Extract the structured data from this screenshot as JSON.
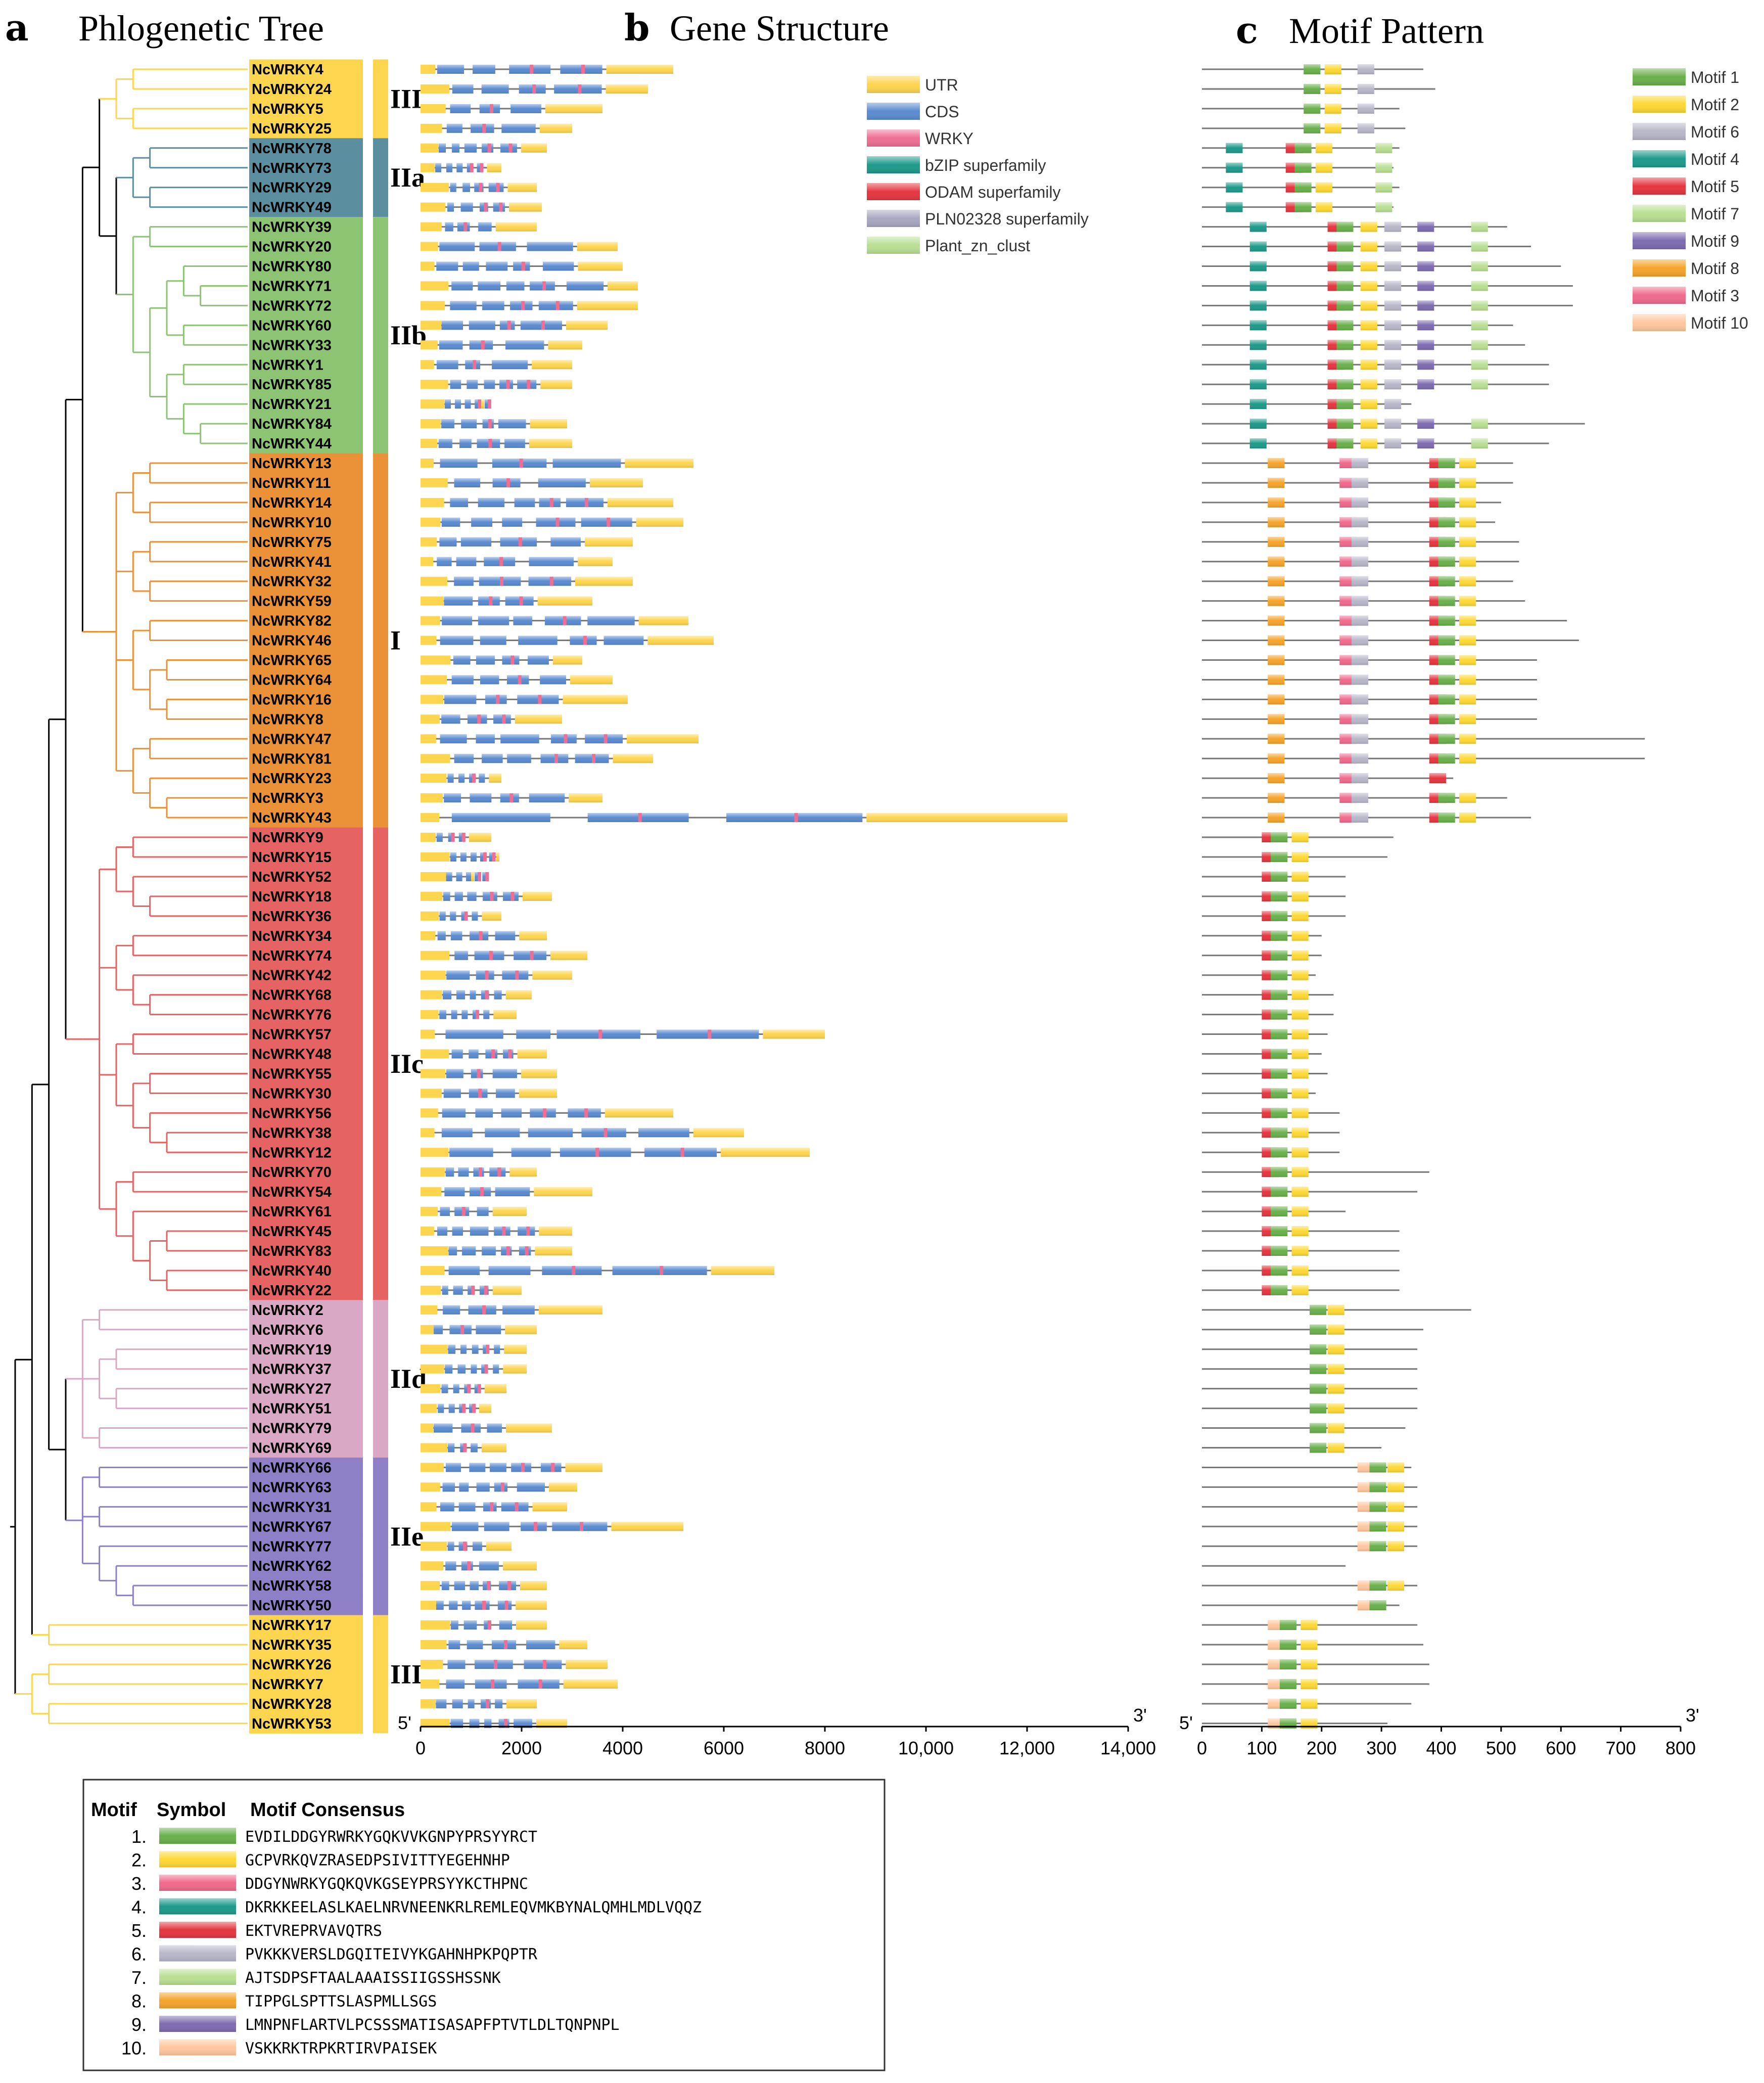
{
  "panels": {
    "a": {
      "letter": "a",
      "title": "Phlogenetic Tree"
    },
    "b": {
      "letter": "b",
      "title": "Gene Structure"
    },
    "c": {
      "letter": "c",
      "title": "Motif Pattern"
    }
  },
  "genes": [
    "NcWRKY4",
    "NcWRKY24",
    "NcWRKY5",
    "NcWRKY25",
    "NcWRKY78",
    "NcWRKY73",
    "NcWRKY29",
    "NcWRKY49",
    "NcWRKY39",
    "NcWRKY20",
    "NcWRKY80",
    "NcWRKY71",
    "NcWRKY72",
    "NcWRKY60",
    "NcWRKY33",
    "NcWRKY1",
    "NcWRKY85",
    "NcWRKY21",
    "NcWRKY84",
    "NcWRKY44",
    "NcWRKY13",
    "NcWRKY11",
    "NcWRKY14",
    "NcWRKY10",
    "NcWRKY75",
    "NcWRKY41",
    "NcWRKY32",
    "NcWRKY59",
    "NcWRKY82",
    "NcWRKY46",
    "NcWRKY65",
    "NcWRKY64",
    "NcWRKY16",
    "NcWRKY8",
    "NcWRKY47",
    "NcWRKY81",
    "NcWRKY23",
    "NcWRKY3",
    "NcWRKY43",
    "NcWRKY9",
    "NcWRKY15",
    "NcWRKY52",
    "NcWRKY18",
    "NcWRKY36",
    "NcWRKY34",
    "NcWRKY74",
    "NcWRKY42",
    "NcWRKY68",
    "NcWRKY76",
    "NcWRKY57",
    "NcWRKY48",
    "NcWRKY55",
    "NcWRKY30",
    "NcWRKY56",
    "NcWRKY38",
    "NcWRKY12",
    "NcWRKY70",
    "NcWRKY54",
    "NcWRKY61",
    "NcWRKY45",
    "NcWRKY83",
    "NcWRKY40",
    "NcWRKY22",
    "NcWRKY2",
    "NcWRKY6",
    "NcWRKY19",
    "NcWRKY37",
    "NcWRKY27",
    "NcWRKY51",
    "NcWRKY79",
    "NcWRKY69",
    "NcWRKY66",
    "NcWRKY63",
    "NcWRKY31",
    "NcWRKY67",
    "NcWRKY77",
    "NcWRKY62",
    "NcWRKY58",
    "NcWRKY50",
    "NcWRKY17",
    "NcWRKY35",
    "NcWRKY26",
    "NcWRKY7",
    "NcWRKY28",
    "NcWRKY53"
  ],
  "groups": [
    {
      "label": "III",
      "start": 0,
      "end": 3,
      "color": "#fdd54f"
    },
    {
      "label": "IIa",
      "start": 4,
      "end": 7,
      "color": "#5b8fa0"
    },
    {
      "label": "IIb",
      "start": 8,
      "end": 19,
      "color": "#8cc474"
    },
    {
      "label": "I",
      "start": 20,
      "end": 38,
      "color": "#eb9238"
    },
    {
      "label": "IIc",
      "start": 39,
      "end": 62,
      "color": "#e56363"
    },
    {
      "label": "IId",
      "start": 63,
      "end": 70,
      "color": "#d9a8c4"
    },
    {
      "label": "IIe",
      "start": 71,
      "end": 78,
      "color": "#8e7fc7"
    },
    {
      "label": "III",
      "start": 79,
      "end": 84,
      "color": "#fdd54f"
    }
  ],
  "gene_lengths_bp": [
    5000,
    4500,
    3600,
    3000,
    2500,
    1600,
    2300,
    2400,
    2300,
    3900,
    4000,
    4300,
    4300,
    3700,
    3200,
    3000,
    3000,
    1200,
    2900,
    3000,
    5400,
    4400,
    5000,
    5200,
    4200,
    3800,
    4200,
    3400,
    5300,
    5800,
    3200,
    3800,
    4100,
    2800,
    5500,
    4600,
    1600,
    3600,
    12800,
    1400,
    1500,
    1000,
    2600,
    1600,
    2500,
    3300,
    3000,
    2200,
    1900,
    8000,
    2500,
    2700,
    2700,
    5000,
    6400,
    7700,
    2300,
    3400,
    2100,
    3000,
    3000,
    7000,
    2000,
    3600,
    2300,
    2100,
    2100,
    1700,
    1400,
    2600,
    1700,
    3600,
    3100,
    2900,
    5200,
    1800,
    2300,
    2500,
    2500,
    2500,
    3300,
    3700,
    3900,
    2300,
    2900
  ],
  "protein_lengths_aa": [
    370,
    390,
    330,
    340,
    330,
    320,
    330,
    320,
    510,
    550,
    600,
    620,
    620,
    520,
    540,
    580,
    580,
    350,
    640,
    580,
    520,
    520,
    500,
    490,
    530,
    530,
    520,
    540,
    610,
    630,
    560,
    560,
    560,
    560,
    740,
    740,
    420,
    510,
    550,
    320,
    310,
    240,
    240,
    240,
    200,
    200,
    190,
    220,
    220,
    210,
    200,
    210,
    190,
    230,
    230,
    230,
    380,
    360,
    240,
    330,
    330,
    330,
    330,
    450,
    370,
    360,
    360,
    360,
    360,
    340,
    300,
    350,
    360,
    360,
    360,
    360,
    240,
    360,
    330,
    360,
    370,
    380,
    380,
    350,
    310
  ],
  "structure_legend": [
    {
      "label": "UTR",
      "color": "#fdd54f"
    },
    {
      "label": "CDS",
      "color": "#5b8bd0"
    },
    {
      "label": "WRKY",
      "color": "#ee6f93"
    },
    {
      "label": "bZIP superfamily",
      "color": "#1e9a8a"
    },
    {
      "label": "ODAM superfamily",
      "color": "#e53640"
    },
    {
      "label": "PLN02328 superfamily",
      "color": "#a7a7c2"
    },
    {
      "label": "Plant_zn_clust",
      "color": "#b9df93"
    }
  ],
  "motif_legend": [
    {
      "label": "Motif 1",
      "color": "#6ab04c"
    },
    {
      "label": "Motif 2",
      "color": "#fdd835"
    },
    {
      "label": "Motif 6",
      "color": "#b7b7c9"
    },
    {
      "label": "Motif 4",
      "color": "#1e9a8a"
    },
    {
      "label": "Motif 5",
      "color": "#e53640"
    },
    {
      "label": "Motif 7",
      "color": "#b9df93"
    },
    {
      "label": "Motif 9",
      "color": "#7e6cb0"
    },
    {
      "label": "Motif 8",
      "color": "#f5a42c"
    },
    {
      "label": "Motif 3",
      "color": "#f06a8d"
    },
    {
      "label": "Motif 10",
      "color": "#ffc79e"
    }
  ],
  "axis_b": {
    "left": "5'",
    "right": "3'",
    "ticks": [
      "0",
      "2000",
      "4000",
      "6000",
      "8000",
      "10,000",
      "12,000",
      "14,000"
    ],
    "max": 14000
  },
  "axis_c": {
    "left": "5'",
    "right": "3'",
    "ticks": [
      "0",
      "100",
      "200",
      "300",
      "400",
      "500",
      "600",
      "700",
      "800"
    ],
    "max": 800
  },
  "motif_table": {
    "headers": {
      "motif": "Motif",
      "symbol": "Symbol",
      "consensus": "Motif Consensus"
    },
    "rows": [
      {
        "num": "1.",
        "color": "#6ab04c",
        "seq": "EVDILDDGYRWRKYGQKVVKGNPYPRSYYRCT"
      },
      {
        "num": "2.",
        "color": "#fdd835",
        "seq": "GCPVRKQVZRASEDPSIVITTYEGEHNHP"
      },
      {
        "num": "3.",
        "color": "#f06a8d",
        "seq": "DDGYNWRKYGQKQVKGSEYPRSYYKCTHPNC"
      },
      {
        "num": "4.",
        "color": "#1e9a8a",
        "seq": "DKRKKEELASLKAELNRVNEENKRLREMLEQVMKBYNALQMHLMDLVQQZ"
      },
      {
        "num": "5.",
        "color": "#e53640",
        "seq": "EKTVREPRVAVQTRS"
      },
      {
        "num": "6.",
        "color": "#b7b7c9",
        "seq": "PVKKKVERSLDGQITEIVYKGAHNHPKPQPTR"
      },
      {
        "num": "7.",
        "color": "#b9df93",
        "seq": "AJTSDPSFTAALAAAISSIIGSSHSSNK"
      },
      {
        "num": "8.",
        "color": "#f5a42c",
        "seq": "TIPPGLSPTTSLASPMLLSGS"
      },
      {
        "num": "9.",
        "color": "#7e6cb0",
        "seq": "LMNPNFLARTVLPCSSSMATISASAPFPTVTLDLTQNPNPL"
      },
      {
        "num": "10.",
        "color": "#ffc79e",
        "seq": "VSKKRKTRPKRTIRVPAISEK"
      }
    ]
  }
}
